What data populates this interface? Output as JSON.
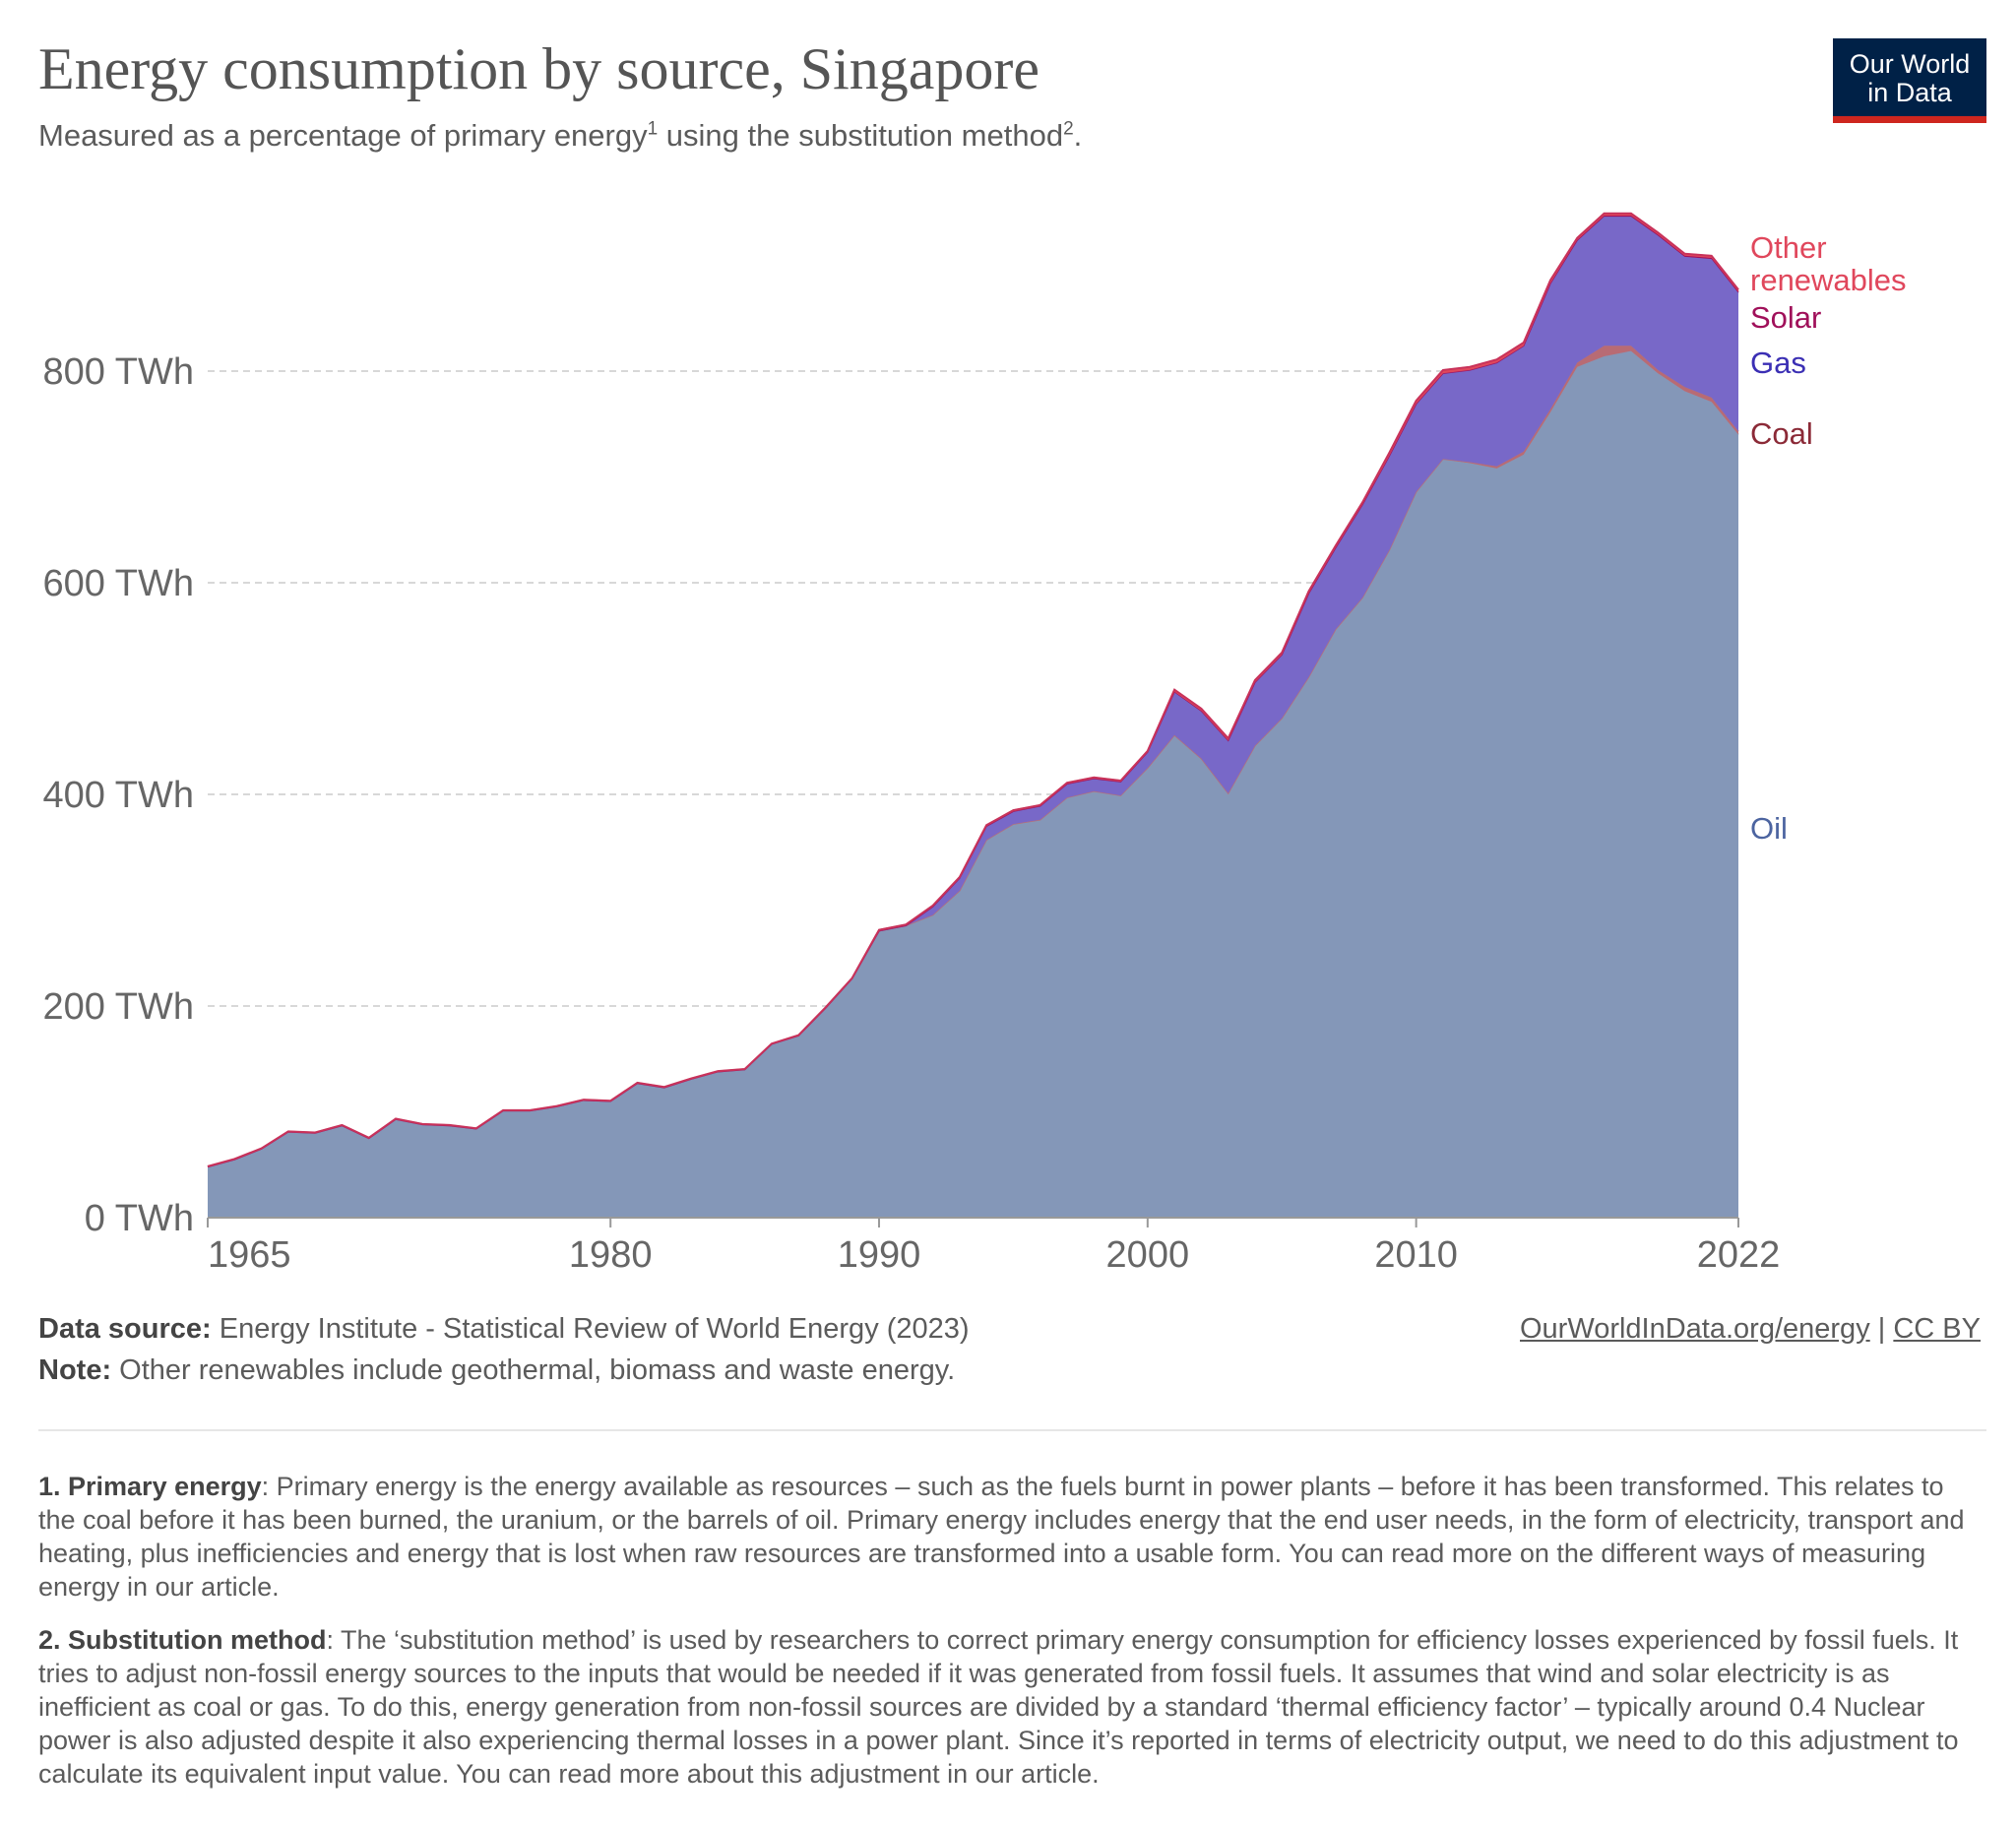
{
  "header": {
    "title": "Energy consumption by source, Singapore",
    "subtitle_pre": "Measured as a percentage of primary energy",
    "sup1": "1",
    "subtitle_mid": " using the substitution method",
    "sup2": "2",
    "subtitle_post": ".",
    "logo_line1": "Our World",
    "logo_line2": "in Data"
  },
  "chart_data": {
    "type": "area",
    "stacked": true,
    "ylim": [
      0,
      950
    ],
    "yticks": [
      0,
      200,
      400,
      600,
      800
    ],
    "ytick_labels": [
      "0 TWh",
      "200 TWh",
      "400 TWh",
      "600 TWh",
      "800 TWh"
    ],
    "xticks": [
      1965,
      1980,
      1990,
      2000,
      2010,
      2022
    ],
    "xtick_labels": [
      "1965",
      "1980",
      "1990",
      "2000",
      "2010",
      "2022"
    ],
    "grid": "horizontal dashed",
    "legend": "right, inline labels",
    "years": [
      1965,
      1966,
      1967,
      1968,
      1969,
      1970,
      1971,
      1972,
      1973,
      1974,
      1975,
      1976,
      1977,
      1978,
      1979,
      1980,
      1981,
      1982,
      1983,
      1984,
      1985,
      1986,
      1987,
      1988,
      1989,
      1990,
      1991,
      1992,
      1993,
      1994,
      1995,
      1996,
      1997,
      1998,
      1999,
      2000,
      2001,
      2002,
      2003,
      2004,
      2005,
      2006,
      2007,
      2008,
      2009,
      2010,
      2011,
      2012,
      2013,
      2014,
      2015,
      2016,
      2017,
      2018,
      2019,
      2020,
      2021,
      2022
    ],
    "series": [
      {
        "name": "Oil",
        "color": "#8497b8",
        "label_color": "#4c64a0",
        "values": [
          48,
          55,
          65,
          81,
          80,
          87,
          75,
          93,
          88,
          87,
          84,
          101,
          101,
          105,
          111,
          110,
          127,
          123,
          131,
          138,
          140,
          164,
          172,
          198,
          226,
          271,
          276,
          286,
          309,
          357,
          372,
          376,
          397,
          403,
          399,
          425,
          456,
          434,
          401,
          446,
          472,
          511,
          556,
          586,
          631,
          686,
          717,
          713,
          708,
          721,
          761,
          804,
          814,
          819,
          798,
          781,
          771,
          740
        ]
      },
      {
        "name": "Coal",
        "color": "#b86b74",
        "label_color": "#8b2a37",
        "values": [
          0,
          0,
          0,
          0,
          0,
          0,
          0,
          0,
          0,
          0,
          0,
          0,
          0,
          0,
          0,
          0,
          0,
          0,
          0,
          0,
          0,
          0,
          0,
          0,
          0,
          0,
          0,
          0,
          0,
          0,
          0,
          0,
          0,
          0,
          0,
          0,
          0,
          0,
          0,
          0,
          0,
          0,
          0,
          0,
          0,
          0,
          0,
          1,
          2,
          3,
          3,
          4,
          10,
          5,
          3,
          4,
          4,
          3
        ]
      },
      {
        "name": "Gas",
        "color": "#7868c8",
        "label_color": "#3b2fb4",
        "values": [
          0,
          0,
          0,
          0,
          0,
          0,
          0,
          0,
          0,
          0,
          0,
          0,
          0,
          0,
          0,
          0,
          0,
          0,
          0,
          0,
          0,
          0,
          0,
          0,
          0,
          0,
          0,
          8,
          12,
          13,
          12,
          13,
          13,
          12,
          13,
          15,
          41,
          45,
          50,
          60,
          60,
          79,
          77,
          88,
          89,
          83,
          81,
          87,
          98,
          100,
          119,
          115,
          122,
          122,
          127,
          123,
          131,
          131
        ]
      },
      {
        "name": "Solar",
        "color": "#a0105a",
        "label_color": "#a0105a",
        "values": [
          0,
          0,
          0,
          0,
          0,
          0,
          0,
          0,
          0,
          0,
          0,
          0,
          0,
          0,
          0,
          0,
          0,
          0,
          0,
          0,
          0,
          0,
          0,
          0,
          0,
          0,
          0,
          0,
          0,
          0,
          0,
          0,
          0,
          0,
          0,
          0,
          0,
          0,
          0,
          0,
          0,
          0,
          0,
          0,
          0,
          0,
          0,
          0,
          0,
          0,
          0,
          1,
          1,
          1,
          1,
          1,
          1,
          1
        ]
      },
      {
        "name": "Other renewables",
        "color": "#e0475c",
        "label_color": "#e0475c",
        "values": [
          0.5,
          0.5,
          0.5,
          0.5,
          0.5,
          0.5,
          0.5,
          0.5,
          0.5,
          0.5,
          0.5,
          0.5,
          0.5,
          0.5,
          0.5,
          0.5,
          0.5,
          0.5,
          0.5,
          0.5,
          0.5,
          0.5,
          0.5,
          0.5,
          0.5,
          1,
          1,
          1,
          1,
          1,
          1,
          1,
          1,
          1,
          1,
          1,
          2,
          2,
          2,
          2,
          2,
          2,
          2,
          2,
          3,
          3,
          3,
          3,
          3,
          3,
          3,
          2,
          2,
          2,
          2,
          2,
          2,
          2
        ]
      }
    ]
  },
  "legend_labels": {
    "other_line1": "Other",
    "other_line2": "renewables",
    "solar": "Solar",
    "gas": "Gas",
    "coal": "Coal",
    "oil": "Oil"
  },
  "footer": {
    "source_label": "Data source:",
    "source_text": " Energy Institute - Statistical Review of World Energy (2023)",
    "note_label": "Note:",
    "note_text": " Other renewables include geothermal, biomass and waste energy.",
    "link": "OurWorldInData.org/energy",
    "sep": " | ",
    "license": "CC BY"
  },
  "notes": {
    "n1_label": "1. Primary energy",
    "n1_text": ": Primary energy is the energy available as resources – such as the fuels burnt in power plants – before it has been transformed. This relates to the coal before it has been burned, the uranium, or the barrels of oil. Primary energy includes energy that the end user needs, in the form of electricity, transport and heating, plus inefficiencies and energy that is lost when raw resources are transformed into a usable form. You can read more on the different ways of measuring energy in our article.",
    "n2_label": "2. Substitution method",
    "n2_text": ": The ‘substitution method’ is used by researchers to correct primary energy consumption for efficiency losses experienced by fossil fuels. It tries to adjust non-fossil energy sources to the inputs that would be needed if it was generated from fossil fuels. It assumes that wind and solar electricity is as inefficient as coal or gas. To do this, energy generation from non-fossil sources are divided by a standard ‘thermal efficiency factor’ – typically around 0.4 Nuclear power is also adjusted despite it also experiencing thermal losses in a power plant. Since it’s reported in terms of electricity output, we need to do this adjustment to calculate its equivalent input value. You can read more about this adjustment in our article."
  }
}
